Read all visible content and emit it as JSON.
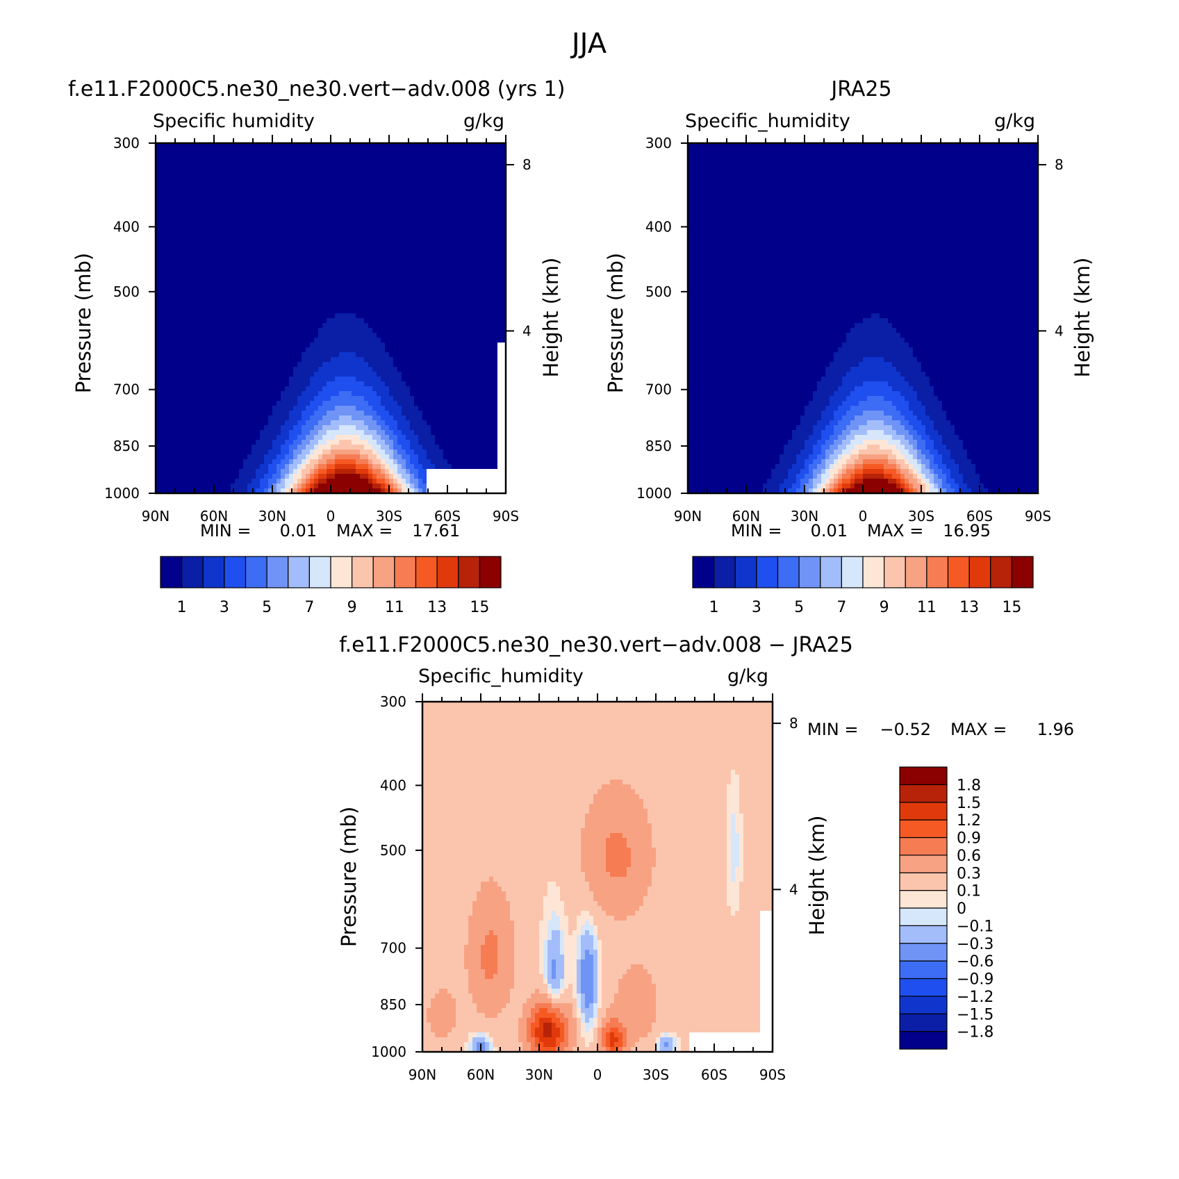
{
  "figure": {
    "title": "JJA"
  },
  "chart_data": [
    {
      "type": "heatmap",
      "title": "f.e11.F2000C5.ne30_ne30.vert−adv.008 (yrs 1)",
      "left_label": "Specific humidity",
      "units": "g/kg",
      "ylabel": "Pressure (mb)",
      "y2label": "Height (km)",
      "x_ticks": [
        "90N",
        "60N",
        "30N",
        "0",
        "30S",
        "60S",
        "90S"
      ],
      "x_values": [
        90,
        60,
        30,
        0,
        -30,
        -60,
        -90
      ],
      "y_ticks": [
        "300",
        "400",
        "500",
        "700",
        "850",
        "1000"
      ],
      "y_values": [
        300,
        400,
        500,
        700,
        850,
        1000
      ],
      "y2_ticks": [
        "8",
        "4"
      ],
      "y2_values": [
        8,
        4
      ],
      "ylim": [
        1000,
        300
      ],
      "xlim": [
        90,
        -90
      ],
      "min_label": "MIN =",
      "min_value": "0.01",
      "max_label": "MAX =",
      "max_value": "17.61",
      "peak_lat": -8,
      "peak_value": 17.6,
      "top_value": 0.3,
      "width_deg": 32,
      "skew": 1.15,
      "masked_region": {
        "lat_from": -50,
        "lat_to": -90,
        "p_from": 920,
        "p_to": 1000
      },
      "masked_fringe": {
        "lat_from": -85,
        "lat_to": -90,
        "p_from": 600,
        "p_to": 1000
      },
      "colorbar": {
        "colors": [
          "#00008b",
          "#0a1ea6",
          "#0f35cc",
          "#1f4fee",
          "#3d6cf5",
          "#6f94f6",
          "#a3bdfa",
          "#d6e6fb",
          "#fde6d6",
          "#fbc5ad",
          "#f8a284",
          "#f67c54",
          "#f65a24",
          "#e03a0c",
          "#b62308",
          "#8b0000"
        ],
        "labels": [
          "1",
          "3",
          "5",
          "7",
          "9",
          "11",
          "13",
          "15"
        ]
      }
    },
    {
      "type": "heatmap",
      "title": "JRA25",
      "left_label": "Specific_humidity",
      "units": "g/kg",
      "ylabel": "Pressure (mb)",
      "y2label": "Height (km)",
      "x_ticks": [
        "90N",
        "60N",
        "30N",
        "0",
        "30S",
        "60S",
        "90S"
      ],
      "x_values": [
        90,
        60,
        30,
        0,
        -30,
        -60,
        -90
      ],
      "y_ticks": [
        "300",
        "400",
        "500",
        "700",
        "850",
        "1000"
      ],
      "y_values": [
        300,
        400,
        500,
        700,
        850,
        1000
      ],
      "y2_ticks": [
        "8",
        "4"
      ],
      "y2_values": [
        8,
        4
      ],
      "ylim": [
        1000,
        300
      ],
      "xlim": [
        90,
        -90
      ],
      "min_label": "MIN =",
      "min_value": "0.01",
      "max_label": "MAX =",
      "max_value": "16.95",
      "peak_lat": -6,
      "peak_value": 17.0,
      "top_value": 0.3,
      "width_deg": 31,
      "skew": 1.1,
      "colorbar": {
        "colors": [
          "#00008b",
          "#0a1ea6",
          "#0f35cc",
          "#1f4fee",
          "#3d6cf5",
          "#6f94f6",
          "#a3bdfa",
          "#d6e6fb",
          "#fde6d6",
          "#fbc5ad",
          "#f8a284",
          "#f67c54",
          "#f65a24",
          "#e03a0c",
          "#b62308",
          "#8b0000"
        ],
        "labels": [
          "1",
          "3",
          "5",
          "7",
          "9",
          "11",
          "13",
          "15"
        ]
      }
    },
    {
      "type": "heatmap",
      "title": "f.e11.F2000C5.ne30_ne30.vert−adv.008 − JRA25",
      "left_label": "Specific_humidity",
      "units": "g/kg",
      "ylabel": "Pressure (mb)",
      "y2label": "Height (km)",
      "x_ticks": [
        "90N",
        "60N",
        "30N",
        "0",
        "30S",
        "60S",
        "90S"
      ],
      "x_values": [
        90,
        60,
        30,
        0,
        -30,
        -60,
        -90
      ],
      "y_ticks": [
        "300",
        "400",
        "500",
        "700",
        "850",
        "1000"
      ],
      "y_values": [
        300,
        400,
        500,
        700,
        850,
        1000
      ],
      "y2_ticks": [
        "8",
        "4"
      ],
      "y2_values": [
        8,
        4
      ],
      "ylim": [
        1000,
        300
      ],
      "xlim": [
        90,
        -90
      ],
      "min_label": "MIN =",
      "min_value": "−0.52",
      "max_label": "MAX =",
      "max_value": "1.96",
      "base_value": 0.12,
      "features": [
        {
          "lat": 55,
          "p": 720,
          "dlat": 12,
          "dp": 160,
          "amp": 0.55
        },
        {
          "lat": 25,
          "p": 930,
          "dlat": 10,
          "dp": 90,
          "amp": 1.6
        },
        {
          "lat": -10,
          "p": 510,
          "dlat": 18,
          "dp": 110,
          "amp": 0.55
        },
        {
          "lat": 22,
          "p": 780,
          "dlat": 5,
          "dp": 140,
          "amp": -0.5
        },
        {
          "lat": 5,
          "p": 780,
          "dlat": 5,
          "dp": 130,
          "amp": -0.65
        },
        {
          "lat": 60,
          "p": 980,
          "dlat": 5,
          "dp": 40,
          "amp": -0.55
        },
        {
          "lat": -35,
          "p": 980,
          "dlat": 5,
          "dp": 40,
          "amp": -0.5
        },
        {
          "lat": -8,
          "p": 960,
          "dlat": 6,
          "dp": 60,
          "amp": 1.1
        },
        {
          "lat": -70,
          "p": 500,
          "dlat": 3,
          "dp": 80,
          "amp": -0.2
        },
        {
          "lat": -20,
          "p": 850,
          "dlat": 15,
          "dp": 150,
          "amp": 0.3
        },
        {
          "lat": 80,
          "p": 880,
          "dlat": 8,
          "dp": 80,
          "amp": 0.4
        }
      ],
      "masked_region": {
        "lat_from": -48,
        "lat_to": -90,
        "p_from": 930,
        "p_to": 1000
      },
      "masked_fringe": {
        "lat_from": -84,
        "lat_to": -90,
        "p_from": 620,
        "p_to": 1000
      },
      "colorbar": {
        "colors": [
          "#00008b",
          "#0a1ea6",
          "#0f35cc",
          "#1f4fee",
          "#3d6cf5",
          "#6f94f6",
          "#a3bdfa",
          "#d6e6fb",
          "#fde6d6",
          "#fbc5ad",
          "#f8a284",
          "#f67c54",
          "#f65a24",
          "#e03a0c",
          "#b62308",
          "#8b0000"
        ],
        "labels": [
          "−1.8",
          "−1.5",
          "−1.2",
          "−0.9",
          "−0.6",
          "−0.3",
          "−0.1",
          "0",
          "0.1",
          "0.3",
          "0.6",
          "0.9",
          "1.2",
          "1.5",
          "1.8"
        ],
        "levels": [
          -1.8,
          -1.5,
          -1.2,
          -0.9,
          -0.6,
          -0.3,
          -0.1,
          0,
          0.1,
          0.3,
          0.6,
          0.9,
          1.2,
          1.5,
          1.8
        ]
      }
    }
  ]
}
